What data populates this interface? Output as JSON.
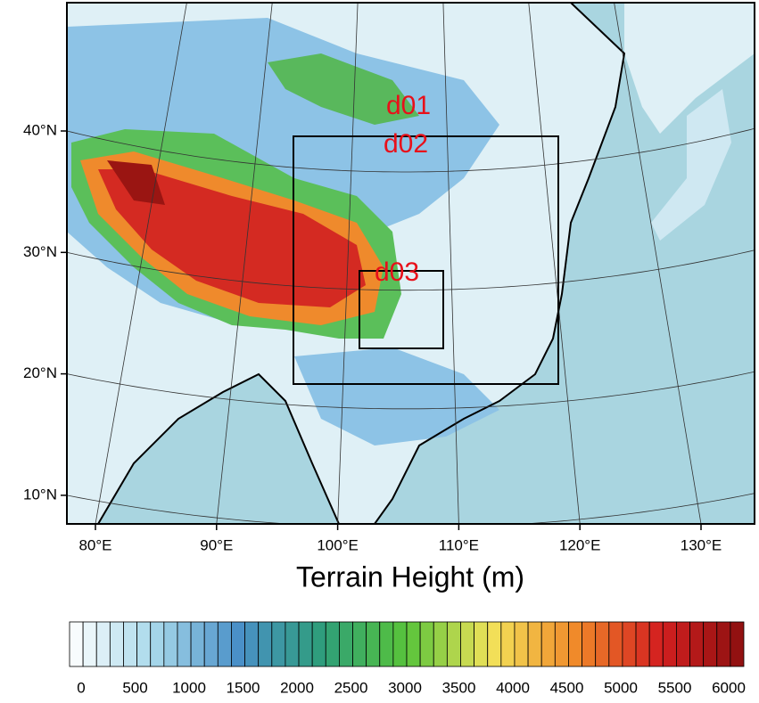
{
  "map": {
    "title": "Terrain Height (m)",
    "domains": [
      "d01",
      "d02",
      "d03"
    ],
    "lat_ticks": [
      {
        "value": 40,
        "label": "40°N"
      },
      {
        "value": 30,
        "label": "30°N"
      },
      {
        "value": 20,
        "label": "20°N"
      },
      {
        "value": 10,
        "label": "10°N"
      }
    ],
    "lon_ticks": [
      {
        "value": 80,
        "label": "80°E"
      },
      {
        "value": 90,
        "label": "90°E"
      },
      {
        "value": 100,
        "label": "100°E"
      },
      {
        "value": 110,
        "label": "110°E"
      },
      {
        "value": 120,
        "label": "120°E"
      },
      {
        "value": 130,
        "label": "130°E"
      }
    ]
  },
  "colorbar": {
    "ticks": [
      0,
      500,
      1000,
      1500,
      2000,
      2500,
      3000,
      3500,
      4000,
      4500,
      5000,
      5500,
      6000
    ],
    "colormap": [
      "#ffffff",
      "#a8d8ea",
      "#4a90c8",
      "#2e9e7a",
      "#58c43a",
      "#f2e35a",
      "#f08a2a",
      "#d42020",
      "#8c1010"
    ]
  }
}
